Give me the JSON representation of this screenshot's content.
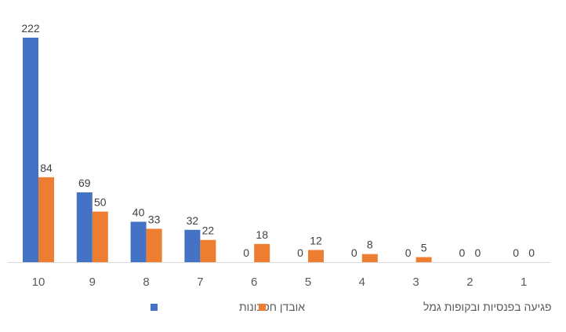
{
  "chart_data": {
    "type": "bar",
    "categories": [
      "10",
      "9",
      "8",
      "7",
      "6",
      "5",
      "4",
      "3",
      "2",
      "1"
    ],
    "series": [
      {
        "name": "אובדן חסכונות",
        "color": "#4472C4",
        "values": [
          222,
          69,
          40,
          32,
          0,
          0,
          0,
          0,
          0,
          0
        ]
      },
      {
        "name": "פגיעה בפנסיות ובקופות גמל",
        "color": "#ED7D31",
        "values": [
          84,
          50,
          33,
          22,
          18,
          12,
          8,
          5,
          0,
          0
        ]
      }
    ],
    "title": "",
    "xlabel": "",
    "ylabel": "",
    "ylim": [
      0,
      222
    ],
    "grid": false,
    "legend_position": "bottom",
    "data_labels": true
  }
}
